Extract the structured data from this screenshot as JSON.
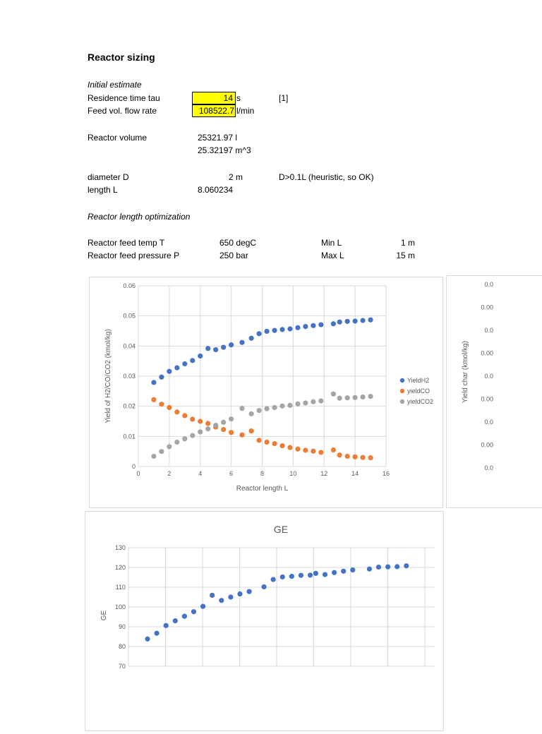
{
  "heading": "Reactor sizing",
  "initial": {
    "label": "Initial estimate",
    "tau": {
      "label": "Residence time tau",
      "value": "14",
      "unit": "s",
      "ref": "[1]"
    },
    "flow": {
      "label": "Feed vol. flow rate",
      "value": "108522.7",
      "unit": "l/min"
    },
    "volume": {
      "label": "Reactor volume",
      "value_l": "25321.97 l",
      "value_m3": "25.32197 m^3"
    },
    "diameter": {
      "label": "diameter D",
      "value": "2 m",
      "note": "D>0.1L (heuristic, so OK)"
    },
    "length": {
      "label": "length L",
      "value": "8.060234"
    }
  },
  "optimization": {
    "label": "Reactor length optimization",
    "temp": {
      "label": "Reactor feed temp T",
      "value": "650 degC"
    },
    "pressure": {
      "label": "Reactor feed pressure P",
      "value": "250 bar"
    },
    "minL": {
      "label": "Min L",
      "value": "1 m"
    },
    "maxL": {
      "label": "Max L",
      "value": "15 m"
    }
  },
  "colors": {
    "h2": "#4472c4",
    "co": "#ed7d31",
    "co2": "#a5a5a5",
    "grid": "#d9d9d9",
    "axis": "#595959"
  },
  "chart_data": [
    {
      "type": "scatter",
      "title": "",
      "xlabel": "Reactor length L",
      "ylabel": "Yield of H2/CO/CO2 (kmol/kg)",
      "xlim": [
        0,
        16
      ],
      "ylim": [
        0,
        0.06
      ],
      "xticks": [
        0,
        2,
        4,
        6,
        8,
        10,
        12,
        14,
        16
      ],
      "yticks": [
        0,
        0.01,
        0.02,
        0.03,
        0.04,
        0.05,
        0.06
      ],
      "ytick_labels": [
        "0",
        "0.01",
        "0.02",
        "0.03",
        "0.04",
        "0.05",
        "0.06"
      ],
      "grid": true,
      "legend": "right",
      "x": [
        1,
        1.5,
        2,
        2.5,
        3,
        3.5,
        4,
        4.5,
        5,
        5.5,
        6,
        6.7,
        7.3,
        7.8,
        8.3,
        8.8,
        9.3,
        9.8,
        10.3,
        10.8,
        11.3,
        11.8,
        12.6,
        13,
        13.5,
        14,
        14.5,
        15
      ],
      "series": [
        {
          "name": "YieldH2",
          "values": [
            0.0279,
            0.0297,
            0.0316,
            0.0328,
            0.0341,
            0.0352,
            0.0367,
            0.0392,
            0.0388,
            0.0396,
            0.0404,
            0.0412,
            0.0426,
            0.0441,
            0.0449,
            0.0452,
            0.0455,
            0.0457,
            0.0461,
            0.0465,
            0.0468,
            0.0471,
            0.0474,
            0.048,
            0.0482,
            0.0483,
            0.0485,
            0.0487
          ]
        },
        {
          "name": "yieldCO",
          "values": [
            0.0222,
            0.0207,
            0.0196,
            0.0181,
            0.0169,
            0.0157,
            0.015,
            0.0143,
            0.0131,
            0.0123,
            0.0113,
            0.0105,
            0.0118,
            0.0087,
            0.0081,
            0.0076,
            0.0069,
            0.0063,
            0.0058,
            0.0054,
            0.0051,
            0.0047,
            0.0055,
            0.0038,
            0.0034,
            0.0032,
            0.003,
            0.0029
          ]
        },
        {
          "name": "yieldCO2",
          "values": [
            0.0034,
            0.005,
            0.0066,
            0.0081,
            0.0092,
            0.0103,
            0.0115,
            0.0125,
            0.0137,
            0.0147,
            0.0158,
            0.0193,
            0.0175,
            0.0186,
            0.0192,
            0.0196,
            0.0201,
            0.0203,
            0.0208,
            0.0211,
            0.0215,
            0.0218,
            0.0241,
            0.0227,
            0.0228,
            0.0229,
            0.0231,
            0.0233
          ]
        }
      ]
    },
    {
      "type": "scatter",
      "title": "",
      "xlabel": "",
      "ylabel": "Yield char (kmol/kg)",
      "ytick_labels": [
        "0.0",
        "0.00",
        "0.0",
        "0.00",
        "0.0",
        "0.00",
        "0.0",
        "0.00",
        "0.0"
      ],
      "note": "chart cut off at right edge"
    },
    {
      "type": "scatter",
      "title": "GE",
      "xlabel": "",
      "ylabel": "GE",
      "ylim": [
        70,
        130
      ],
      "yticks": [
        70,
        80,
        90,
        100,
        110,
        120,
        130
      ],
      "grid": true,
      "x": [
        1,
        1.5,
        2,
        2.5,
        3,
        3.5,
        4,
        4.5,
        5,
        5.5,
        6,
        6.5,
        7.3,
        7.8,
        8.3,
        8.8,
        9.3,
        9.8,
        10.1,
        10.6,
        11.1,
        11.6,
        12.1,
        13,
        13.5,
        14,
        14.5,
        15
      ],
      "series": [
        {
          "name": "GE",
          "values": [
            83.8,
            86.7,
            90.6,
            93,
            95.3,
            97.6,
            100.3,
            105.9,
            103.3,
            105,
            106.6,
            107.8,
            110.2,
            113.9,
            115.2,
            115.5,
            116,
            116.1,
            117,
            116.4,
            117.4,
            118.1,
            118.7,
            119.2,
            120.2,
            120.3,
            120.4,
            120.8
          ]
        }
      ]
    }
  ]
}
